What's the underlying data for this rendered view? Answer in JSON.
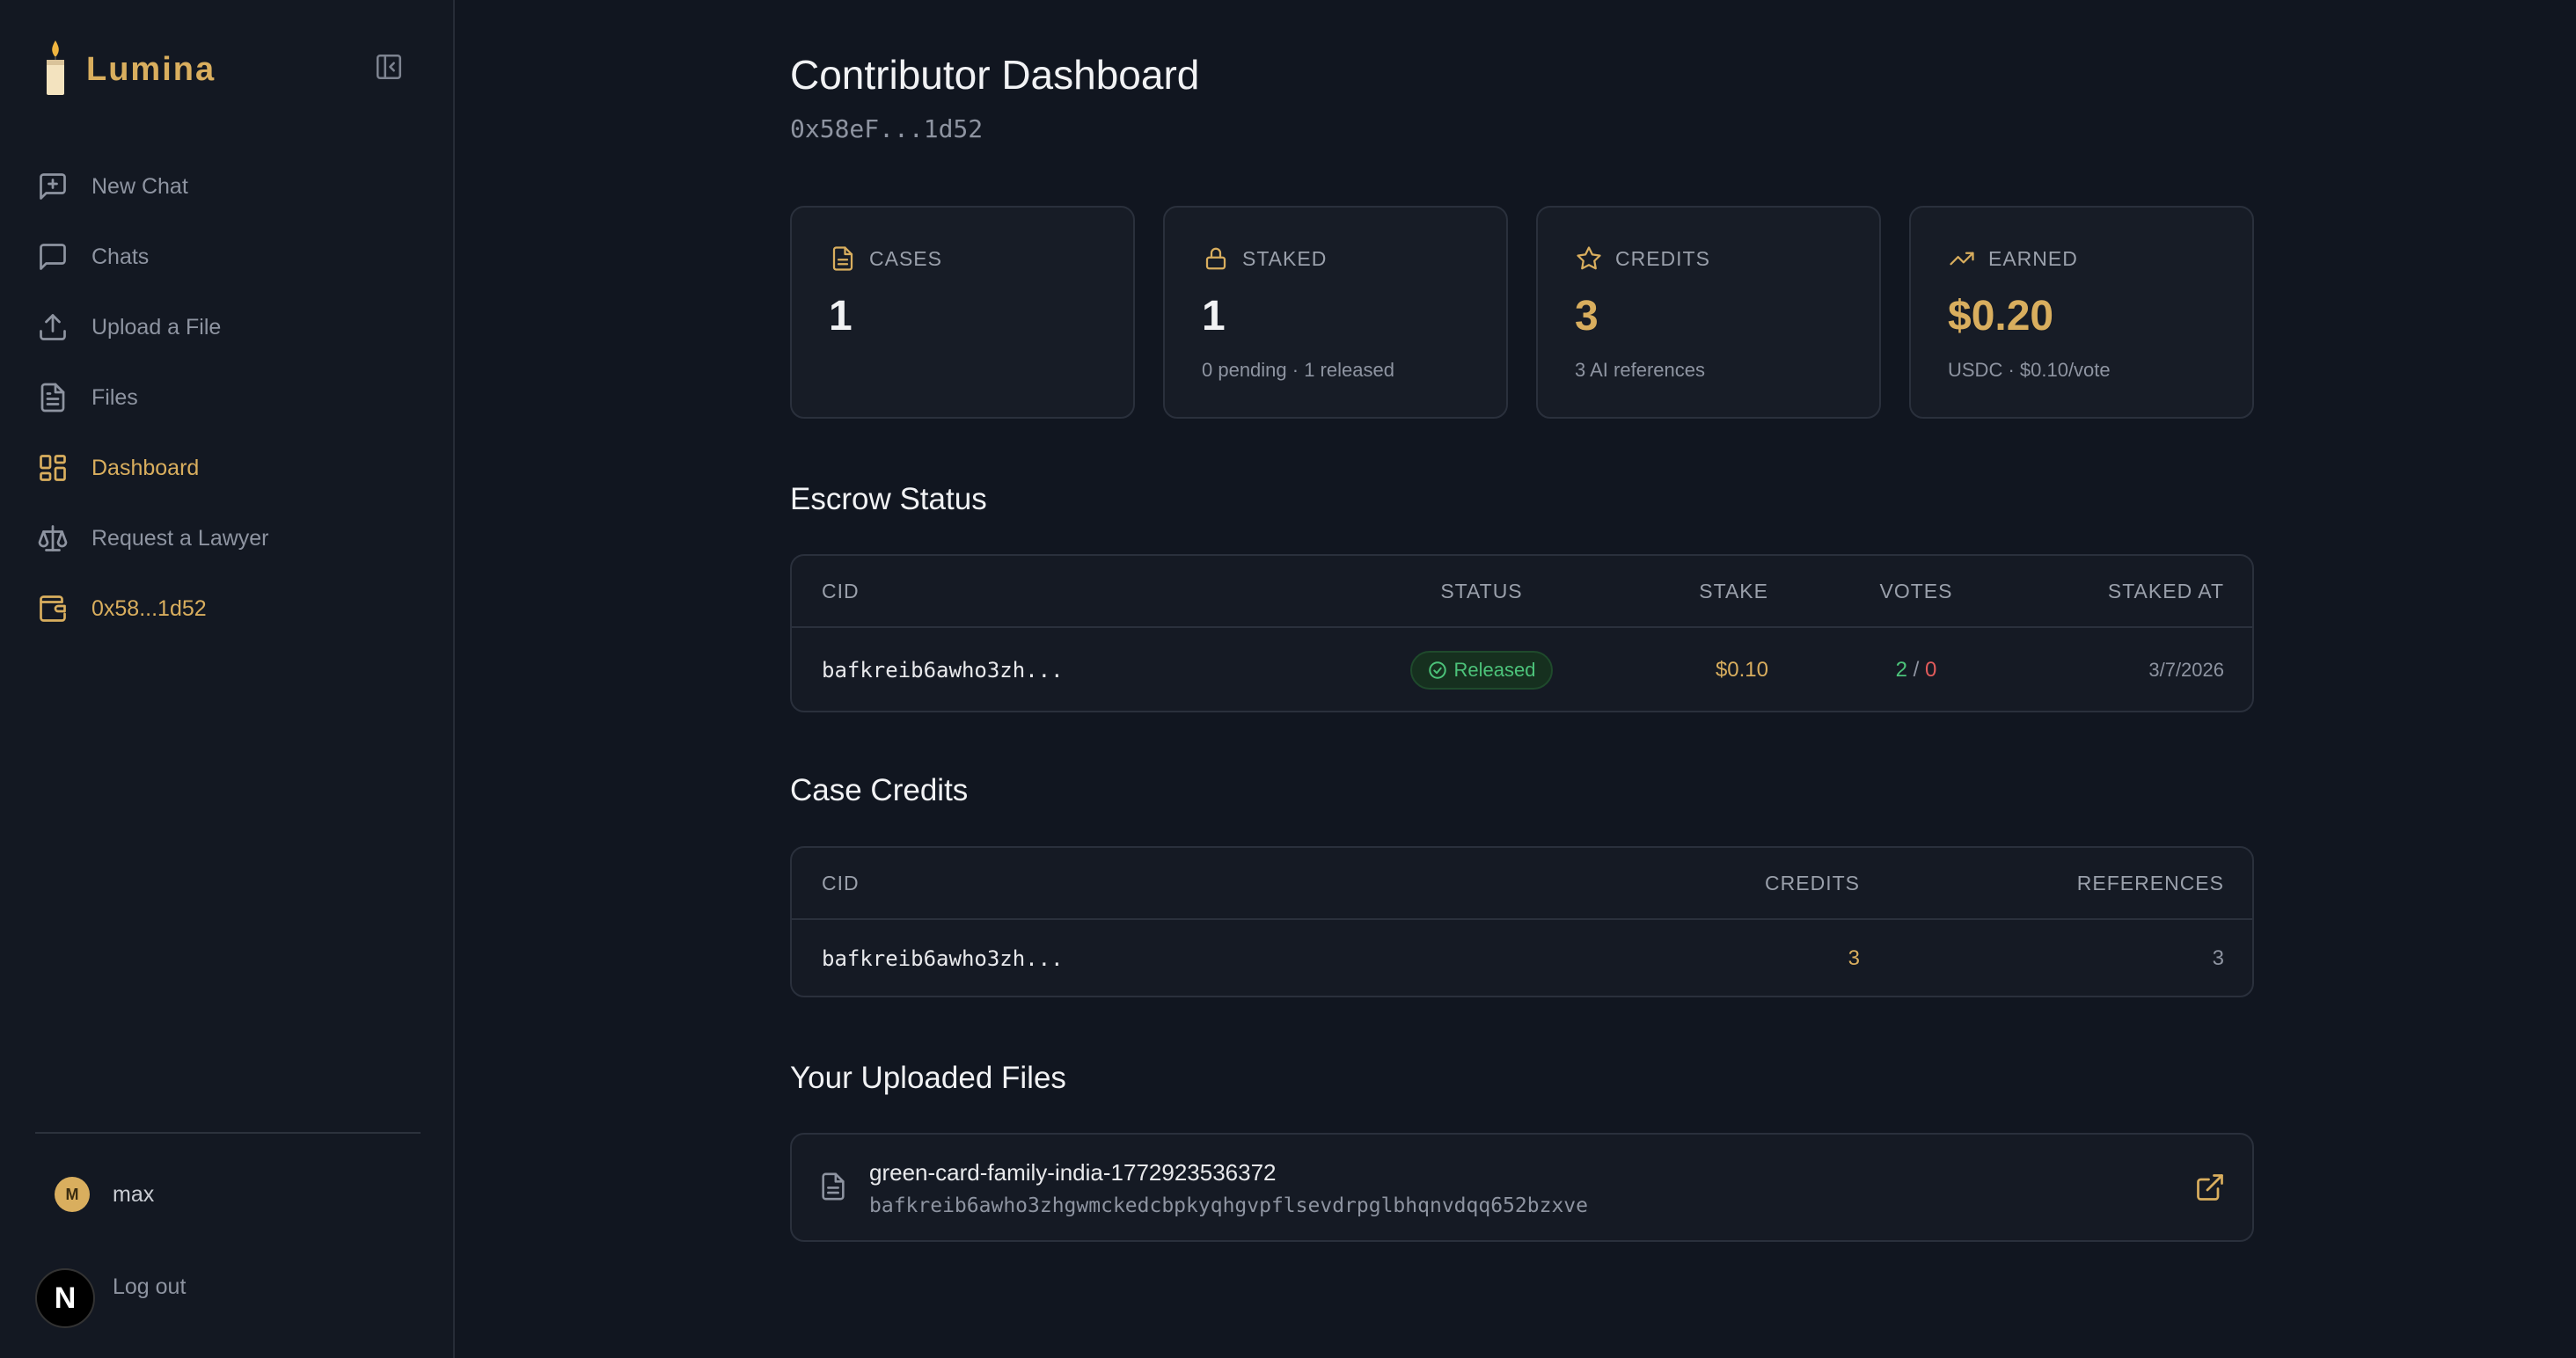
{
  "brand": {
    "name": "Lumina"
  },
  "sidebar": {
    "items": [
      {
        "label": "New Chat",
        "icon": "new-chat-icon"
      },
      {
        "label": "Chats",
        "icon": "chat-bubble-icon"
      },
      {
        "label": "Upload a File",
        "icon": "upload-icon"
      },
      {
        "label": "Files",
        "icon": "file-icon"
      },
      {
        "label": "Dashboard",
        "icon": "dashboard-grid-icon",
        "active": true
      },
      {
        "label": "Request a Lawyer",
        "icon": "scales-icon"
      },
      {
        "label": "0x58...1d52",
        "icon": "wallet-icon",
        "active": true
      }
    ],
    "user": {
      "initial": "M",
      "name": "max"
    },
    "logout_label": "Log out",
    "n_badge": "N"
  },
  "page": {
    "title": "Contributor Dashboard",
    "address": "0x58eF...1d52"
  },
  "stats": {
    "cases": {
      "label": "CASES",
      "value": "1",
      "sub": ""
    },
    "staked": {
      "label": "STAKED",
      "value": "1",
      "sub": "0 pending · 1 released"
    },
    "credits": {
      "label": "CREDITS",
      "value": "3",
      "sub": "3 AI references"
    },
    "earned": {
      "label": "EARNED",
      "value": "$0.20",
      "sub": "USDC · $0.10/vote"
    }
  },
  "escrow": {
    "title": "Escrow Status",
    "columns": {
      "cid": "CID",
      "status": "STATUS",
      "stake": "STAKE",
      "votes": "VOTES",
      "staked_at": "STAKED AT"
    },
    "rows": [
      {
        "cid": "bafkreib6awho3zh...",
        "status": "Released",
        "stake": "$0.10",
        "votes_yes": "2",
        "votes_sep": " / ",
        "votes_no": "0",
        "staked_at": "3/7/2026"
      }
    ]
  },
  "credits_table": {
    "title": "Case Credits",
    "columns": {
      "cid": "CID",
      "credits": "CREDITS",
      "references": "REFERENCES"
    },
    "rows": [
      {
        "cid": "bafkreib6awho3zh...",
        "credits": "3",
        "references": "3"
      }
    ]
  },
  "uploads": {
    "title": "Your Uploaded Files",
    "files": [
      {
        "name": "green-card-family-india-1772923536372",
        "cid": "bafkreib6awho3zhgwmckedcbpkyqhgvpflsevdrpglbhqnvdqq652bzxve"
      }
    ]
  },
  "colors": {
    "accent": "#d9ae5e",
    "background": "#111620",
    "success": "#4cc37a",
    "danger": "#e25b5b"
  }
}
